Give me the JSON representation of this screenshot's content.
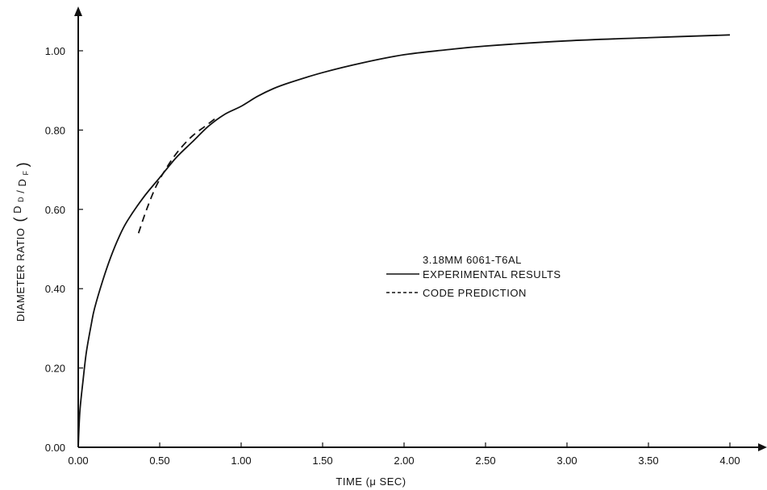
{
  "chart_data": {
    "type": "line",
    "xlabel": "TIME (μ SEC)",
    "ylabel": "DIAMETER RATIO (DD/DF)",
    "ylabel_main": "DIAMETER RATIO",
    "ylabel_num": "D",
    "ylabel_num_sub": "D",
    "ylabel_den": "D",
    "ylabel_den_sub": "F",
    "xlim": [
      0,
      4.2
    ],
    "ylim": [
      0,
      1.12
    ],
    "x_ticks": [
      "0.00",
      "0.50",
      "1.00",
      "1.50",
      "2.00",
      "2.50",
      "3.00",
      "3.50",
      "4.00"
    ],
    "y_ticks": [
      "0.00",
      "0.20",
      "0.40",
      "0.60",
      "0.80",
      "1.00"
    ],
    "x_tick_values": [
      0,
      0.5,
      1.0,
      1.5,
      2.0,
      2.5,
      3.0,
      3.5,
      4.0
    ],
    "y_tick_values": [
      0,
      0.2,
      0.4,
      0.6,
      0.8,
      1.0
    ],
    "legend_title": "3.18MM 6061-T6AL",
    "series": [
      {
        "name": "EXPERIMENTAL RESULTS",
        "style": "solid",
        "x": [
          0.0,
          0.01,
          0.03,
          0.05,
          0.08,
          0.1,
          0.15,
          0.2,
          0.25,
          0.3,
          0.4,
          0.5,
          0.6,
          0.7,
          0.8,
          0.9,
          1.0,
          1.1,
          1.2,
          1.3,
          1.5,
          1.75,
          2.0,
          2.25,
          2.5,
          3.0,
          3.5,
          4.0
        ],
        "y": [
          0.0,
          0.09,
          0.17,
          0.24,
          0.31,
          0.35,
          0.42,
          0.48,
          0.53,
          0.57,
          0.63,
          0.68,
          0.73,
          0.77,
          0.81,
          0.84,
          0.86,
          0.885,
          0.905,
          0.92,
          0.945,
          0.97,
          0.99,
          1.002,
          1.012,
          1.025,
          1.033,
          1.04
        ]
      },
      {
        "name": "CODE PREDICTION",
        "style": "dashed",
        "x": [
          0.37,
          0.42,
          0.48,
          0.55,
          0.62,
          0.7,
          0.78,
          0.86
        ],
        "y": [
          0.54,
          0.6,
          0.66,
          0.71,
          0.75,
          0.785,
          0.81,
          0.835
        ]
      }
    ],
    "line_color": "#111111"
  }
}
